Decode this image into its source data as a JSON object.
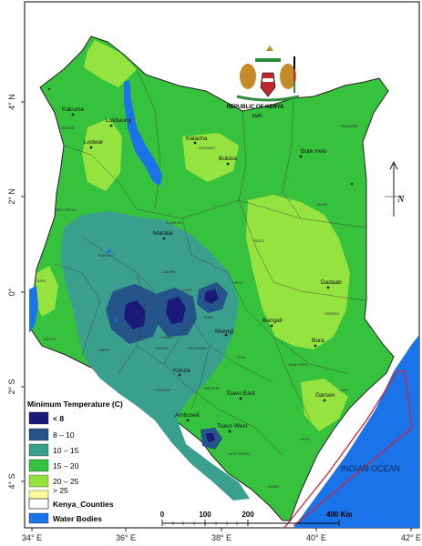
{
  "axes": {
    "lon_ticks": [
      "34° E",
      "36° E",
      "38° E",
      "40° E",
      "42° E"
    ],
    "lat_ticks": [
      "4° N",
      "2° N",
      "0°",
      "2° S",
      "4° S"
    ]
  },
  "emblem": {
    "caption": "REPUBLIC OF KENYA",
    "sub_caption": "KMD"
  },
  "cities": [
    {
      "name": "Lokitaung"
    },
    {
      "name": "Kakuma"
    },
    {
      "name": "Lodwar"
    },
    {
      "name": "Kalacha"
    },
    {
      "name": "Bubisa"
    },
    {
      "name": "Bute Helu"
    },
    {
      "name": "Maralal"
    },
    {
      "name": "Dadaab"
    },
    {
      "name": "Bangali"
    },
    {
      "name": "Bura"
    },
    {
      "name": "Mwingi"
    },
    {
      "name": "Konza"
    },
    {
      "name": "Tsavo East"
    },
    {
      "name": "Garsen"
    },
    {
      "name": "Amboseli"
    },
    {
      "name": "Tsavo West"
    }
  ],
  "county_labels": [
    "TURKANA",
    "MANDERA",
    "MARSABIT",
    "WAJIR",
    "WEST POKOT",
    "SAMBURU",
    "ISIOLO",
    "GARISSA",
    "BARINGO",
    "LAIKIPIA",
    "MERU",
    "EMBU",
    "KITUI",
    "MACHAKOS",
    "NAROK",
    "KAJIADO",
    "MAKUENI",
    "TAITA TAVETA",
    "KWALE",
    "KILIFI",
    "TANA RIVER",
    "LAMU",
    "NAIROBI",
    "NYERI",
    "KIAMBU",
    "SIAYA",
    "MIGORI"
  ],
  "legend": {
    "title": "Minimum Temperature (C)",
    "items": [
      {
        "label": "< 8",
        "color": "#1c1a78"
      },
      {
        "label": "8 – 10",
        "color": "#24548a"
      },
      {
        "label": "10 – 15",
        "color": "#3b9f8e"
      },
      {
        "label": "15 – 20",
        "color": "#36c23d"
      },
      {
        "label": "20 – 25",
        "color": "#95e33f"
      },
      {
        "label": "> 25",
        "color": "#fbfa9c"
      }
    ],
    "counties_label": "Kenya_Counties",
    "water_label": "Water Bodies",
    "water_color": "#1a73e8"
  },
  "ocean_label": "INDIAN OCEAN",
  "boundary_label": "Territorial Boundary",
  "scale_bar": {
    "ticks": [
      "0",
      "100",
      "200"
    ],
    "end_label": "400 Km"
  },
  "north_arrow": {
    "letter": "N"
  }
}
